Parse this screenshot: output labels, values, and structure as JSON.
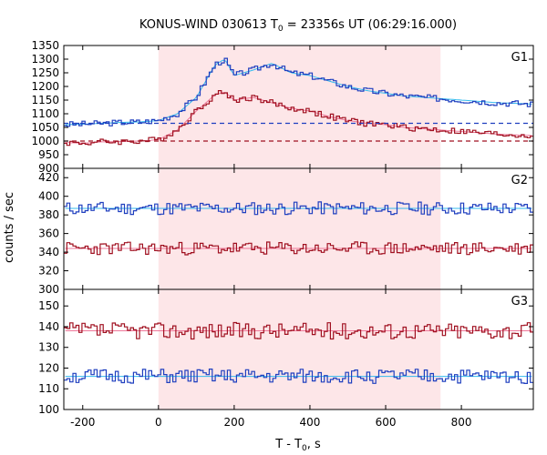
{
  "chart_data": {
    "type": "line",
    "title": "KONUS-WIND 030613 T",
    "title_sub": "0",
    "title_rest": " = 23356s UT (06:29:16.000)",
    "xlabel": "T - T",
    "xlabel_sub": "0",
    "xlabel_rest": ", s",
    "ylabel": "counts / sec",
    "xlim": [
      -250,
      990
    ],
    "xticks": [
      -200,
      0,
      200,
      400,
      600,
      800
    ],
    "shaded_interval": [
      0,
      745
    ],
    "colors": {
      "blue": "#1f3fbf",
      "red": "#a01020",
      "fit_blue": "#33bbee",
      "fit_red": "#ee7799",
      "shade": "#fde6e8"
    },
    "panels": [
      {
        "label": "G1",
        "ylim": [
          900,
          1350
        ],
        "yticks": [
          900,
          950,
          1000,
          1050,
          1100,
          1150,
          1200,
          1250,
          1300,
          1350
        ],
        "baselines": [
          {
            "series": "blue",
            "y": 1065
          },
          {
            "series": "red",
            "y": 1000
          }
        ],
        "series": [
          {
            "color": "blue",
            "x": [
              -250,
              -200,
              -150,
              -100,
              -50,
              0,
              50,
              100,
              150,
              175,
              200,
              250,
              300,
              350,
              400,
              450,
              500,
              550,
              600,
              650,
              700,
              750,
              800,
              850,
              900,
              950,
              990
            ],
            "y": [
              1060,
              1062,
              1065,
              1068,
              1070,
              1075,
              1100,
              1160,
              1280,
              1300,
              1240,
              1260,
              1285,
              1250,
              1240,
              1220,
              1200,
              1185,
              1175,
              1165,
              1160,
              1155,
              1150,
              1145,
              1140,
              1138,
              1135
            ]
          },
          {
            "color": "red",
            "x": [
              -250,
              -200,
              -150,
              -100,
              -50,
              0,
              50,
              100,
              150,
              175,
              200,
              250,
              300,
              350,
              400,
              450,
              500,
              550,
              600,
              650,
              700,
              750,
              800,
              850,
              900,
              950,
              990
            ],
            "y": [
              995,
              992,
              997,
              998,
              1000,
              1005,
              1040,
              1110,
              1170,
              1180,
              1150,
              1160,
              1140,
              1120,
              1110,
              1090,
              1075,
              1065,
              1060,
              1050,
              1045,
              1040,
              1035,
              1030,
              1025,
              1022,
              1020
            ]
          }
        ]
      },
      {
        "label": "G2",
        "ylim": [
          300,
          430
        ],
        "yticks": [
          300,
          320,
          340,
          360,
          380,
          400,
          420
        ],
        "baselines": [],
        "series": [
          {
            "color": "blue",
            "level": 387,
            "noise": 7,
            "seed": 11
          },
          {
            "color": "red",
            "level": 344,
            "noise": 7,
            "seed": 23
          }
        ]
      },
      {
        "label": "G3",
        "ylim": [
          100,
          158
        ],
        "yticks": [
          100,
          110,
          120,
          130,
          140,
          150
        ],
        "baselines": [],
        "series": [
          {
            "color": "red",
            "level": 138,
            "noise": 4,
            "seed": 37
          },
          {
            "color": "blue",
            "level": 116,
            "noise": 3.5,
            "seed": 51
          }
        ]
      }
    ]
  }
}
